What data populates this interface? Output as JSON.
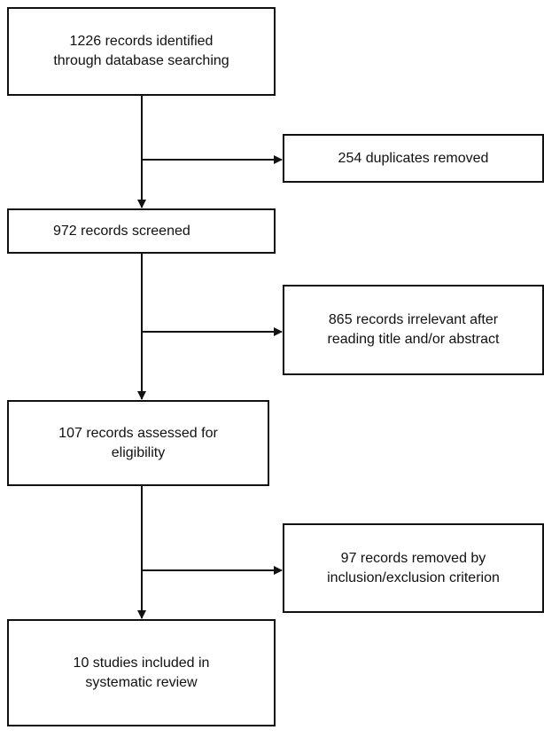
{
  "flowchart": {
    "identified": "1226  records identified\nthrough database searching",
    "duplicates": "254 duplicates removed",
    "screened": "972 records screened",
    "irrelevant": "865 records irrelevant after\nreading title and/or abstract",
    "assessed": "107 records assessed for\neligibility",
    "removed": "97 records removed by\ninclusion/exclusion criterion",
    "included": "10 studies included in\nsystematic review"
  },
  "colors": {
    "stroke": "#111111",
    "background": "#ffffff"
  }
}
